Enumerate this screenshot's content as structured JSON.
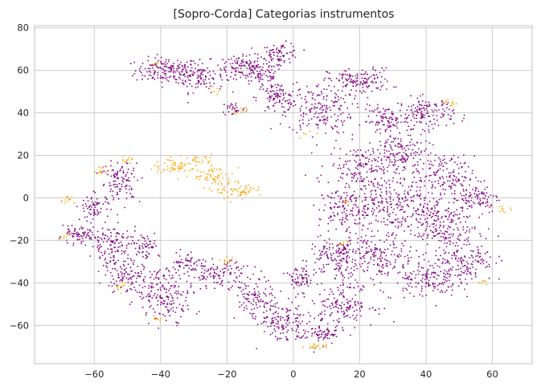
{
  "chart_data": {
    "type": "scatter",
    "title": "[Sopro-Corda] Categorias instrumentos",
    "xlabel": "",
    "ylabel": "",
    "xlim": [
      -78,
      72
    ],
    "ylim": [
      -78,
      81
    ],
    "xticks": [
      -60,
      -40,
      -20,
      0,
      20,
      40,
      60
    ],
    "yticks": [
      -60,
      -40,
      -20,
      0,
      20,
      40,
      60,
      80
    ],
    "xtick_labels": [
      "−60",
      "−40",
      "−20",
      "0",
      "20",
      "40",
      "60"
    ],
    "ytick_labels": [
      "−60",
      "−40",
      "−20",
      "0",
      "20",
      "40",
      "60",
      "80"
    ],
    "grid": true,
    "legend": "none",
    "series": [
      {
        "color": "#800080",
        "regions": [
          {
            "cx": -38,
            "cy": 60,
            "rx": 8,
            "ry": 5,
            "n": 160
          },
          {
            "cx": -28,
            "cy": 57,
            "rx": 6,
            "ry": 6,
            "n": 110
          },
          {
            "cx": -16,
            "cy": 62,
            "rx": 5,
            "ry": 4,
            "n": 80
          },
          {
            "cx": -10,
            "cy": 58,
            "rx": 6,
            "ry": 5,
            "n": 90
          },
          {
            "cx": -4,
            "cy": 68,
            "rx": 5,
            "ry": 4,
            "n": 80
          },
          {
            "cx": -5,
            "cy": 47,
            "rx": 5,
            "ry": 6,
            "n": 100
          },
          {
            "cx": -18,
            "cy": 42,
            "rx": 3,
            "ry": 3,
            "n": 30
          },
          {
            "cx": 8,
            "cy": 42,
            "rx": 8,
            "ry": 10,
            "n": 180
          },
          {
            "cx": 20,
            "cy": 55,
            "rx": 8,
            "ry": 5,
            "n": 140
          },
          {
            "cx": 28,
            "cy": 36,
            "rx": 6,
            "ry": 6,
            "n": 100
          },
          {
            "cx": 40,
            "cy": 40,
            "rx": 7,
            "ry": 6,
            "n": 140
          },
          {
            "cx": 33,
            "cy": 20,
            "rx": 8,
            "ry": 10,
            "n": 160
          },
          {
            "cx": 20,
            "cy": 15,
            "rx": 8,
            "ry": 8,
            "n": 140
          },
          {
            "cx": 45,
            "cy": 10,
            "rx": 8,
            "ry": 8,
            "n": 150
          },
          {
            "cx": 55,
            "cy": 0,
            "rx": 6,
            "ry": 6,
            "n": 100
          },
          {
            "cx": 28,
            "cy": -2,
            "rx": 12,
            "ry": 10,
            "n": 240
          },
          {
            "cx": 15,
            "cy": -5,
            "rx": 6,
            "ry": 8,
            "n": 110
          },
          {
            "cx": 42,
            "cy": -12,
            "rx": 10,
            "ry": 10,
            "n": 220
          },
          {
            "cx": 52,
            "cy": -28,
            "rx": 7,
            "ry": 10,
            "n": 160
          },
          {
            "cx": 40,
            "cy": -38,
            "rx": 8,
            "ry": 7,
            "n": 150
          },
          {
            "cx": 25,
            "cy": -28,
            "rx": 10,
            "ry": 10,
            "n": 220
          },
          {
            "cx": 12,
            "cy": -28,
            "rx": 6,
            "ry": 8,
            "n": 120
          },
          {
            "cx": 15,
            "cy": -50,
            "rx": 8,
            "ry": 8,
            "n": 160
          },
          {
            "cx": 2,
            "cy": -38,
            "rx": 4,
            "ry": 5,
            "n": 70
          },
          {
            "cx": -3,
            "cy": -58,
            "rx": 6,
            "ry": 8,
            "n": 130
          },
          {
            "cx": 8,
            "cy": -64,
            "rx": 6,
            "ry": 4,
            "n": 80
          },
          {
            "cx": -12,
            "cy": -48,
            "rx": 5,
            "ry": 8,
            "n": 100
          },
          {
            "cx": -22,
            "cy": -36,
            "rx": 8,
            "ry": 5,
            "n": 120
          },
          {
            "cx": -38,
            "cy": -45,
            "rx": 7,
            "ry": 10,
            "n": 180
          },
          {
            "cx": -32,
            "cy": -30,
            "rx": 4,
            "ry": 4,
            "n": 50
          },
          {
            "cx": -50,
            "cy": -36,
            "rx": 6,
            "ry": 8,
            "n": 120
          },
          {
            "cx": -55,
            "cy": -22,
            "rx": 5,
            "ry": 8,
            "n": 110
          },
          {
            "cx": -65,
            "cy": -18,
            "rx": 5,
            "ry": 3,
            "n": 80
          },
          {
            "cx": -60,
            "cy": -5,
            "rx": 4,
            "ry": 6,
            "n": 70
          },
          {
            "cx": -52,
            "cy": 8,
            "rx": 5,
            "ry": 8,
            "n": 110
          },
          {
            "cx": -45,
            "cy": -22,
            "rx": 4,
            "ry": 5,
            "n": 60
          }
        ]
      },
      {
        "color": "#ffa500",
        "regions": [
          {
            "cx": -35,
            "cy": 15,
            "rx": 6,
            "ry": 3,
            "n": 60
          },
          {
            "cx": -24,
            "cy": 10,
            "rx": 5,
            "ry": 4,
            "n": 60
          },
          {
            "cx": -16,
            "cy": 3,
            "rx": 6,
            "ry": 3,
            "n": 60
          },
          {
            "cx": -28,
            "cy": 18,
            "rx": 3,
            "ry": 2,
            "n": 20
          },
          {
            "cx": -58,
            "cy": 13,
            "rx": 2,
            "ry": 1.5,
            "n": 12
          },
          {
            "cx": -50,
            "cy": 18,
            "rx": 2,
            "ry": 1.5,
            "n": 12
          },
          {
            "cx": -68,
            "cy": -1,
            "rx": 2,
            "ry": 2,
            "n": 12
          },
          {
            "cx": -69,
            "cy": -18,
            "rx": 1.5,
            "ry": 1.5,
            "n": 8
          },
          {
            "cx": -52,
            "cy": -42,
            "rx": 2,
            "ry": 2,
            "n": 12
          },
          {
            "cx": -41,
            "cy": -57,
            "rx": 1.5,
            "ry": 1.5,
            "n": 8
          },
          {
            "cx": -20,
            "cy": -30,
            "rx": 2,
            "ry": 1.5,
            "n": 10
          },
          {
            "cx": -16,
            "cy": 41,
            "rx": 2,
            "ry": 1.5,
            "n": 10
          },
          {
            "cx": 7,
            "cy": -70,
            "rx": 3,
            "ry": 1,
            "n": 20
          },
          {
            "cx": 4,
            "cy": 30,
            "rx": 1.5,
            "ry": 1.5,
            "n": 6
          },
          {
            "cx": 15,
            "cy": -22,
            "rx": 1.5,
            "ry": 1.5,
            "n": 8
          },
          {
            "cx": 63,
            "cy": -5,
            "rx": 2,
            "ry": 1.5,
            "n": 10
          },
          {
            "cx": 47,
            "cy": 45,
            "rx": 2,
            "ry": 1.5,
            "n": 10
          },
          {
            "cx": -24,
            "cy": 50,
            "rx": 1.5,
            "ry": 1.5,
            "n": 6
          },
          {
            "cx": -41,
            "cy": 63,
            "rx": 1.5,
            "ry": 1,
            "n": 6
          },
          {
            "cx": 16,
            "cy": -2,
            "rx": 1.5,
            "ry": 1.5,
            "n": 6
          },
          {
            "cx": 57,
            "cy": -40,
            "rx": 1.5,
            "ry": 1.5,
            "n": 6
          }
        ]
      }
    ]
  }
}
